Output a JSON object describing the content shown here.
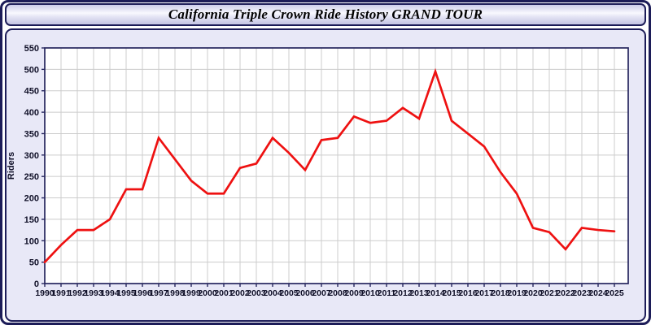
{
  "window": {
    "title": "California Triple Crown Ride History GRAND TOUR"
  },
  "chart_data": {
    "type": "line",
    "title": "California Triple Crown Ride History GRAND TOUR",
    "xlabel": "",
    "ylabel": "Riders",
    "x": [
      1990,
      1991,
      1992,
      1993,
      1994,
      1995,
      1996,
      1997,
      1998,
      1999,
      2000,
      2001,
      2002,
      2003,
      2004,
      2005,
      2006,
      2007,
      2008,
      2009,
      2010,
      2011,
      2012,
      2013,
      2014,
      2015,
      2016,
      2017,
      2018,
      2019,
      2020,
      2021,
      2022,
      2023,
      2024,
      2025
    ],
    "values": [
      50,
      90,
      125,
      125,
      150,
      220,
      220,
      340,
      290,
      240,
      210,
      210,
      270,
      280,
      340,
      305,
      265,
      335,
      340,
      390,
      375,
      380,
      410,
      385,
      495,
      380,
      350,
      320,
      260,
      210,
      130,
      120,
      80,
      130,
      125,
      122
    ],
    "series_name": "Riders",
    "ylim": [
      0,
      550
    ],
    "ytick_step": 50,
    "grid": true,
    "legend_position": "none"
  },
  "colors": {
    "frame_border": "#1c1c58",
    "panel_bg": "#e8e8f7",
    "plot_bg": "#ffffff",
    "gridline": "#cccccc",
    "axis_frame": "#26265e",
    "tick_text": "#101028",
    "line": "#ee1111"
  }
}
